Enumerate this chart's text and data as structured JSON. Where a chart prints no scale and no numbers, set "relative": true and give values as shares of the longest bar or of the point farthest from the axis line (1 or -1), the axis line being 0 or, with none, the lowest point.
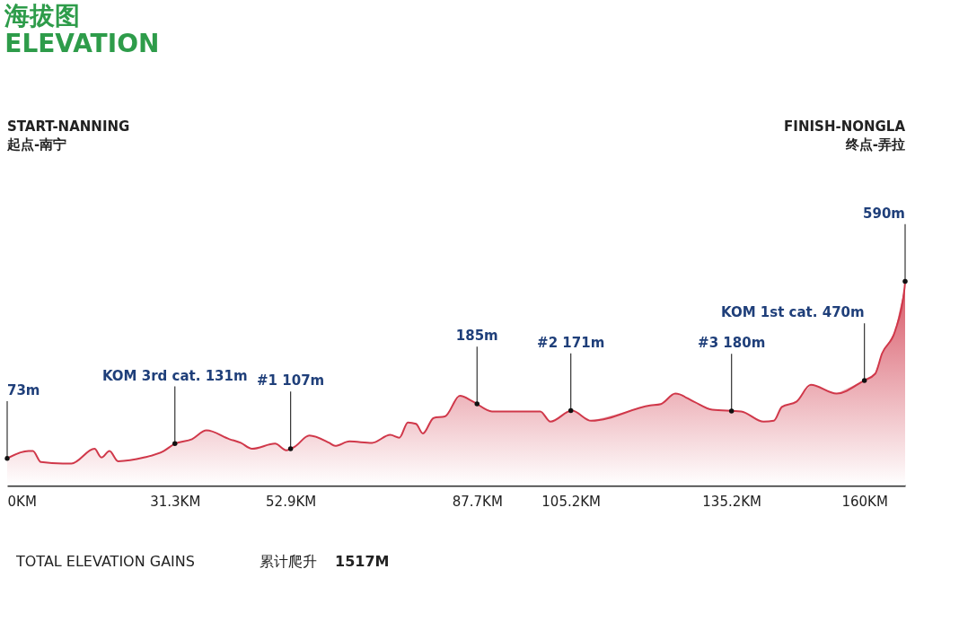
{
  "chart_data": {
    "type": "area",
    "title": "海拔图",
    "subtitle": "ELEVATION",
    "relative": true,
    "color": "#d0384a",
    "xlim": [
      0,
      167.6
    ],
    "xticks": [
      {
        "value": 0,
        "label": "0KM"
      },
      {
        "value": 31.3,
        "label": "31.3KM"
      },
      {
        "value": 52.9,
        "label": "52.9KM"
      },
      {
        "value": 87.7,
        "label": "87.7KM"
      },
      {
        "value": 105.2,
        "label": "105.2KM"
      },
      {
        "value": 135.2,
        "label": "135.2KM"
      },
      {
        "value": 160,
        "label": "160KM"
      }
    ],
    "x": [
      0,
      4.0,
      4.8,
      6.3,
      10.4,
      12.0,
      16.3,
      17.6,
      19.1,
      20.7,
      25.5,
      29.2,
      31.3,
      34.5,
      37.2,
      41.5,
      43.6,
      45.7,
      50.0,
      52.1,
      53.7,
      56.4,
      60.1,
      61.2,
      63.9,
      68.1,
      71.5,
      73.2,
      74.8,
      76.3,
      77.6,
      79.6,
      81.7,
      84.5,
      87.0,
      90.5,
      99.5,
      101.4,
      105.4,
      109.0,
      120.0,
      122.0,
      124.7,
      128.2,
      131.6,
      137.0,
      141.2,
      143.1,
      144.6,
      147.3,
      150.0,
      154.8,
      159.9,
      162.0,
      163.3,
      165.7,
      167.5,
      167.6
    ],
    "values": [
      0.133,
      0.169,
      0.169,
      0.115,
      0.108,
      0.108,
      0.18,
      0.137,
      0.169,
      0.119,
      0.137,
      0.169,
      0.205,
      0.227,
      0.27,
      0.227,
      0.209,
      0.18,
      0.205,
      0.173,
      0.191,
      0.245,
      0.209,
      0.194,
      0.216,
      0.209,
      0.248,
      0.234,
      0.309,
      0.302,
      0.255,
      0.331,
      0.338,
      0.439,
      0.41,
      0.363,
      0.363,
      0.313,
      0.367,
      0.317,
      0.392,
      0.399,
      0.45,
      0.41,
      0.371,
      0.363,
      0.313,
      0.317,
      0.385,
      0.41,
      0.493,
      0.45,
      0.514,
      0.547,
      0.647,
      0.755,
      0.968,
      1.0
    ],
    "annotations": [
      {
        "text": "73m",
        "x": 0,
        "y": 0.133
      },
      {
        "text": "KOM 3rd cat. 131m",
        "x": 31.3,
        "y": 0.205
      },
      {
        "text": "#1 107m",
        "x": 52.9,
        "y": 0.18
      },
      {
        "text": "185m",
        "x": 87.7,
        "y": 0.4
      },
      {
        "text": "#2 171m",
        "x": 105.2,
        "y": 0.367
      },
      {
        "text": "#3 180m",
        "x": 135.2,
        "y": 0.365
      },
      {
        "text": "KOM 1st cat. 470m",
        "x": 160,
        "y": 0.514
      },
      {
        "text": "590m",
        "x": 167.6,
        "y": 1.0
      },
      "START-NANNING",
      "起点-南宁",
      "FINISH-NONGLA",
      "终点-弄拉",
      "TOTAL ELEVATION GAINS",
      "累计爬升",
      "1517M"
    ]
  }
}
